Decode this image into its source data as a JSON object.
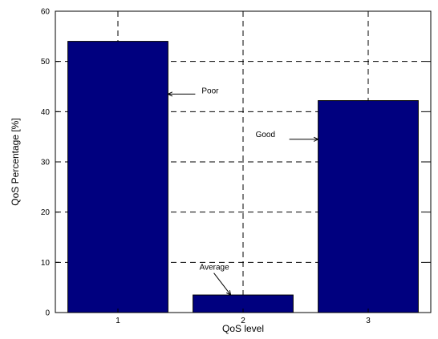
{
  "chart_data": {
    "type": "bar",
    "categories": [
      "1",
      "2",
      "3"
    ],
    "values": [
      54,
      3.5,
      42.2
    ],
    "title": "",
    "xlabel": "QoS level",
    "ylabel": "QoS Percentage [%]",
    "ylim": [
      0,
      60
    ],
    "yticks": [
      "0",
      "10",
      "20",
      "30",
      "40",
      "50",
      "60"
    ],
    "grid": true,
    "bar_color": "#00007f",
    "annotations": [
      {
        "text": "Poor",
        "category": "1"
      },
      {
        "text": "Average",
        "category": "2"
      },
      {
        "text": "Good",
        "category": "3"
      }
    ]
  }
}
